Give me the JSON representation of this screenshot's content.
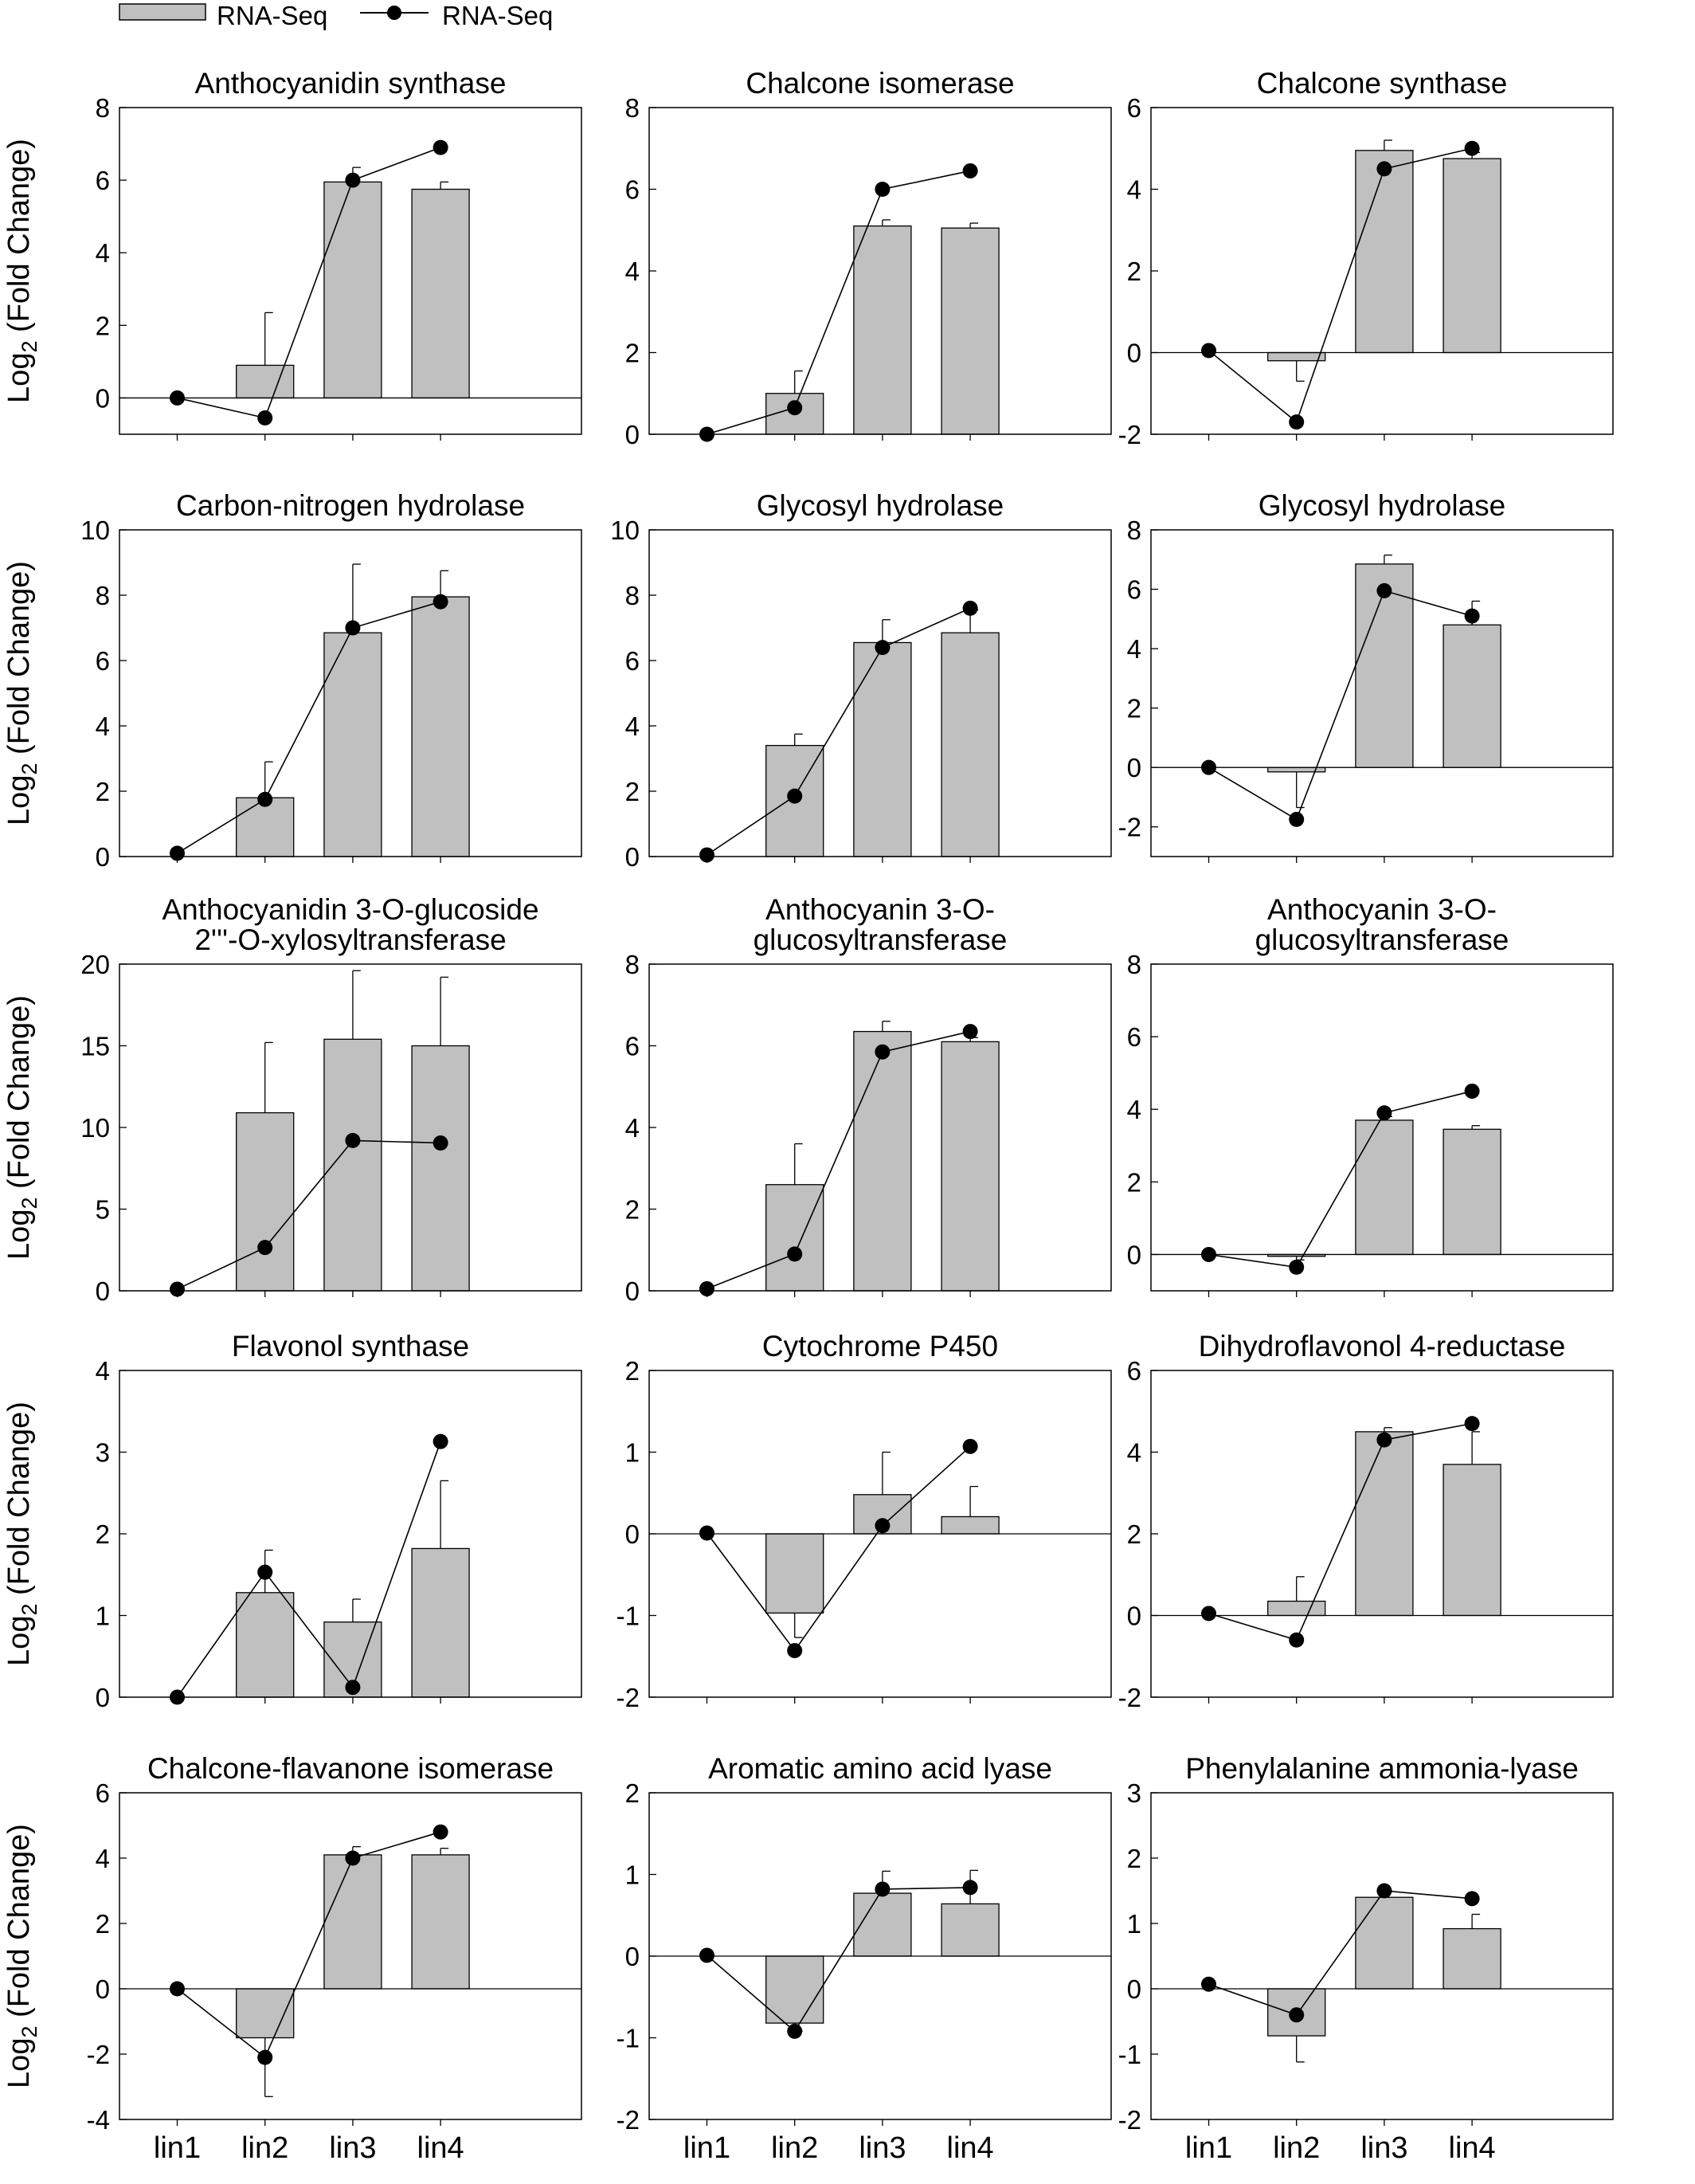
{
  "legend": {
    "bar_label": "RNA-Seq",
    "line_label": "RNA-Seq"
  },
  "ylabel": {
    "main": "Log",
    "sub": "2",
    "rest": " (Fold Change)"
  },
  "colors": {
    "bar_fill": "#c0c0c0",
    "line": "#000000",
    "marker": "#000000",
    "axis": "#000000"
  },
  "chart_data": [
    {
      "type": "bar",
      "title": [
        "Anthocyanidin synthase"
      ],
      "categories": [
        "",
        "",
        "",
        ""
      ],
      "ylim": [
        -1,
        8
      ],
      "yticks": [
        0,
        2,
        4,
        6,
        8
      ],
      "series": [
        {
          "values": [
            0,
            0.9,
            5.95,
            5.75
          ],
          "errors": [
            0,
            1.45,
            0.4,
            0.2
          ]
        },
        {
          "values": [
            0,
            -0.55,
            6.0,
            6.9
          ]
        }
      ]
    },
    {
      "type": "bar",
      "title": [
        "Chalcone isomerase"
      ],
      "categories": [
        "",
        "",
        "",
        ""
      ],
      "ylim": [
        0,
        8
      ],
      "yticks": [
        0,
        2,
        4,
        6,
        8
      ],
      "series": [
        {
          "values": [
            0,
            1.0,
            5.1,
            5.05
          ],
          "errors": [
            0,
            0.55,
            0.15,
            0.12
          ]
        },
        {
          "values": [
            0,
            0.65,
            6.0,
            6.45
          ]
        }
      ]
    },
    {
      "type": "bar",
      "title": [
        "Chalcone synthase"
      ],
      "categories": [
        "",
        "",
        "",
        ""
      ],
      "ylim": [
        -2,
        6
      ],
      "yticks": [
        -2,
        0,
        2,
        4,
        6
      ],
      "series": [
        {
          "values": [
            0,
            -0.2,
            4.95,
            4.75
          ],
          "errors": [
            0,
            0.5,
            0.25,
            0.15
          ]
        },
        {
          "values": [
            0.05,
            -1.7,
            4.5,
            5.0
          ]
        }
      ]
    },
    {
      "type": "bar",
      "title": [
        "Carbon-nitrogen hydrolase"
      ],
      "categories": [
        "",
        "",
        "",
        ""
      ],
      "ylim": [
        0,
        10
      ],
      "yticks": [
        0,
        2,
        4,
        6,
        8,
        10
      ],
      "series": [
        {
          "values": [
            0,
            1.8,
            6.85,
            7.95
          ],
          "errors": [
            0,
            1.1,
            2.1,
            0.8
          ]
        },
        {
          "values": [
            0.1,
            1.75,
            7.0,
            7.8
          ]
        }
      ]
    },
    {
      "type": "bar",
      "title": [
        "Glycosyl hydrolase"
      ],
      "categories": [
        "",
        "",
        "",
        ""
      ],
      "ylim": [
        0,
        10
      ],
      "yticks": [
        0,
        2,
        4,
        6,
        8,
        10
      ],
      "series": [
        {
          "values": [
            0,
            3.4,
            6.55,
            6.85
          ],
          "errors": [
            0,
            0.35,
            0.7,
            0.7
          ]
        },
        {
          "values": [
            0.05,
            1.85,
            6.4,
            7.6
          ]
        }
      ]
    },
    {
      "type": "bar",
      "title": [
        "Glycosyl hydrolase"
      ],
      "categories": [
        "",
        "",
        "",
        ""
      ],
      "ylim": [
        -3,
        8
      ],
      "yticks": [
        -2,
        0,
        2,
        4,
        6,
        8
      ],
      "series": [
        {
          "values": [
            0,
            -0.15,
            6.85,
            4.8
          ],
          "errors": [
            0,
            1.2,
            0.3,
            0.8
          ]
        },
        {
          "values": [
            0.0,
            -1.75,
            5.95,
            5.1
          ]
        }
      ]
    },
    {
      "type": "bar",
      "title": [
        "Anthocyanidin 3-O-glucoside",
        "2'''-O-xylosyltransferase"
      ],
      "categories": [
        "",
        "",
        "",
        ""
      ],
      "ylim": [
        0,
        20
      ],
      "yticks": [
        0,
        5,
        10,
        15,
        20
      ],
      "series": [
        {
          "values": [
            0,
            10.9,
            15.4,
            15.0
          ],
          "errors": [
            0,
            4.3,
            4.2,
            4.2
          ]
        },
        {
          "values": [
            0.1,
            2.65,
            9.2,
            9.05
          ]
        }
      ]
    },
    {
      "type": "bar",
      "title": [
        "Anthocyanin 3-O-",
        "glucosyltransferase"
      ],
      "categories": [
        "",
        "",
        "",
        ""
      ],
      "ylim": [
        0,
        8
      ],
      "yticks": [
        0,
        2,
        4,
        6,
        8
      ],
      "series": [
        {
          "values": [
            0,
            2.6,
            6.35,
            6.1
          ],
          "errors": [
            0,
            1.0,
            0.25,
            0.1
          ]
        },
        {
          "values": [
            0.05,
            0.9,
            5.85,
            6.35
          ]
        }
      ]
    },
    {
      "type": "bar",
      "title": [
        "Anthocyanin 3-O-",
        "glucosyltransferase"
      ],
      "categories": [
        "",
        "",
        "",
        ""
      ],
      "ylim": [
        -1,
        8
      ],
      "yticks": [
        0,
        2,
        4,
        6,
        8
      ],
      "series": [
        {
          "values": [
            0,
            -0.05,
            3.7,
            3.45
          ],
          "errors": [
            0,
            0.1,
            0.1,
            0.1
          ]
        },
        {
          "values": [
            0.0,
            -0.35,
            3.9,
            4.5
          ]
        }
      ]
    },
    {
      "type": "bar",
      "title": [
        "Flavonol synthase"
      ],
      "categories": [
        "",
        "",
        "",
        ""
      ],
      "ylim": [
        0,
        4
      ],
      "yticks": [
        0,
        1,
        2,
        3,
        4
      ],
      "series": [
        {
          "values": [
            0,
            1.28,
            0.92,
            1.82
          ],
          "errors": [
            0,
            0.52,
            0.28,
            0.83
          ]
        },
        {
          "values": [
            0.0,
            1.53,
            0.12,
            3.13
          ]
        }
      ]
    },
    {
      "type": "bar",
      "title": [
        "Cytochrome P450"
      ],
      "categories": [
        "",
        "",
        "",
        ""
      ],
      "ylim": [
        -2,
        2
      ],
      "yticks": [
        -2,
        -1,
        0,
        1,
        2
      ],
      "series": [
        {
          "values": [
            0,
            -0.97,
            0.48,
            0.21
          ],
          "errors": [
            0,
            0.3,
            0.52,
            0.37
          ]
        },
        {
          "values": [
            0.01,
            -1.43,
            0.1,
            1.07
          ]
        }
      ]
    },
    {
      "type": "bar",
      "title": [
        "Dihydroflavonol 4-reductase"
      ],
      "categories": [
        "",
        "",
        "",
        ""
      ],
      "ylim": [
        -2,
        6
      ],
      "yticks": [
        -2,
        0,
        2,
        4,
        6
      ],
      "series": [
        {
          "values": [
            0,
            0.35,
            4.5,
            3.7
          ],
          "errors": [
            0,
            0.6,
            0.1,
            0.8
          ]
        },
        {
          "values": [
            0.05,
            -0.6,
            4.3,
            4.7
          ]
        }
      ]
    },
    {
      "type": "bar",
      "title": [
        "Chalcone-flavanone isomerase"
      ],
      "categories": [
        "lin1",
        "lin2",
        "lin3",
        "lin4"
      ],
      "ylim": [
        -4,
        6
      ],
      "yticks": [
        -4,
        -2,
        0,
        2,
        4,
        6
      ],
      "series": [
        {
          "values": [
            0,
            -1.5,
            4.1,
            4.1
          ],
          "errors": [
            0,
            1.8,
            0.25,
            0.2
          ]
        },
        {
          "values": [
            0.0,
            -2.1,
            4.0,
            4.8
          ]
        }
      ]
    },
    {
      "type": "bar",
      "title": [
        "Aromatic amino acid lyase"
      ],
      "categories": [
        "lin1",
        "lin2",
        "lin3",
        "lin4"
      ],
      "ylim": [
        -2,
        2
      ],
      "yticks": [
        -2,
        -1,
        0,
        1,
        2
      ],
      "series": [
        {
          "values": [
            0,
            -0.82,
            0.77,
            0.64
          ],
          "errors": [
            0,
            0.1,
            0.27,
            0.41
          ]
        },
        {
          "values": [
            0.01,
            -0.92,
            0.82,
            0.84
          ]
        }
      ]
    },
    {
      "type": "bar",
      "title": [
        "Phenylalanine ammonia-lyase"
      ],
      "categories": [
        "lin1",
        "lin2",
        "lin3",
        "lin4"
      ],
      "ylim": [
        -2,
        3
      ],
      "yticks": [
        -2,
        -1,
        0,
        1,
        2,
        3
      ],
      "series": [
        {
          "values": [
            0,
            -0.72,
            1.4,
            0.92
          ],
          "errors": [
            0,
            0.4,
            0.1,
            0.22
          ]
        },
        {
          "values": [
            0.07,
            -0.4,
            1.5,
            1.38
          ]
        }
      ]
    }
  ]
}
